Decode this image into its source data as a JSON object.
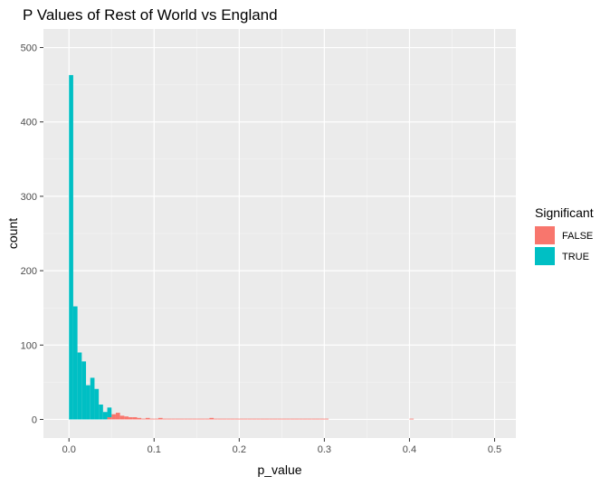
{
  "chart_data": {
    "type": "bar",
    "title": "P Values of Rest of World vs England",
    "xlabel": "p_value",
    "ylabel": "count",
    "xlim": [
      -0.03,
      0.525
    ],
    "ylim": [
      -25,
      525
    ],
    "x_ticks": [
      0.0,
      0.1,
      0.2,
      0.3,
      0.4,
      0.5
    ],
    "x_tick_labels": [
      "0.0",
      "0.1",
      "0.2",
      "0.3",
      "0.4",
      "0.5"
    ],
    "y_ticks": [
      0,
      100,
      200,
      300,
      400,
      500
    ],
    "y_tick_labels": [
      "0",
      "100",
      "200",
      "300",
      "400",
      "500"
    ],
    "grid": true,
    "legend_position": "right",
    "legend_title": "Significant",
    "bin_width": 0.005,
    "series": [
      {
        "name": "FALSE",
        "color": "#F8766D",
        "bins": [
          [
            0.0475,
            3
          ],
          [
            0.0525,
            7
          ],
          [
            0.0575,
            9
          ],
          [
            0.0625,
            5
          ],
          [
            0.0675,
            4
          ],
          [
            0.0725,
            3
          ],
          [
            0.0775,
            3
          ],
          [
            0.0825,
            2
          ],
          [
            0.0875,
            1
          ],
          [
            0.0925,
            2
          ],
          [
            0.0975,
            1
          ],
          [
            0.1025,
            1
          ],
          [
            0.1075,
            2
          ],
          [
            0.1125,
            1
          ],
          [
            0.1175,
            1
          ],
          [
            0.1225,
            1
          ],
          [
            0.1275,
            1
          ],
          [
            0.1325,
            1
          ],
          [
            0.1375,
            1
          ],
          [
            0.1425,
            1
          ],
          [
            0.1475,
            1
          ],
          [
            0.1525,
            1
          ],
          [
            0.1575,
            1
          ],
          [
            0.1625,
            1
          ],
          [
            0.1675,
            2
          ],
          [
            0.1725,
            1
          ],
          [
            0.1775,
            1
          ],
          [
            0.1825,
            1
          ],
          [
            0.1875,
            1
          ],
          [
            0.1925,
            1
          ],
          [
            0.1975,
            1
          ],
          [
            0.2025,
            1
          ],
          [
            0.2075,
            1
          ],
          [
            0.2125,
            1
          ],
          [
            0.2175,
            1
          ],
          [
            0.2225,
            1
          ],
          [
            0.2275,
            1
          ],
          [
            0.2325,
            1
          ],
          [
            0.2375,
            1
          ],
          [
            0.2425,
            1
          ],
          [
            0.2475,
            1
          ],
          [
            0.2525,
            1
          ],
          [
            0.2575,
            1
          ],
          [
            0.2625,
            1
          ],
          [
            0.2675,
            1
          ],
          [
            0.2725,
            1
          ],
          [
            0.2775,
            1
          ],
          [
            0.2825,
            1
          ],
          [
            0.2875,
            1
          ],
          [
            0.2925,
            1
          ],
          [
            0.2975,
            1
          ],
          [
            0.3025,
            1
          ],
          [
            0.4025,
            1
          ]
        ]
      },
      {
        "name": "TRUE",
        "color": "#00BFC4",
        "bins": [
          [
            0.0025,
            463
          ],
          [
            0.0075,
            152
          ],
          [
            0.0125,
            90
          ],
          [
            0.0175,
            78
          ],
          [
            0.0225,
            46
          ],
          [
            0.0275,
            56
          ],
          [
            0.0325,
            41
          ],
          [
            0.0375,
            20
          ],
          [
            0.0425,
            10
          ],
          [
            0.0475,
            13
          ]
        ]
      }
    ]
  }
}
